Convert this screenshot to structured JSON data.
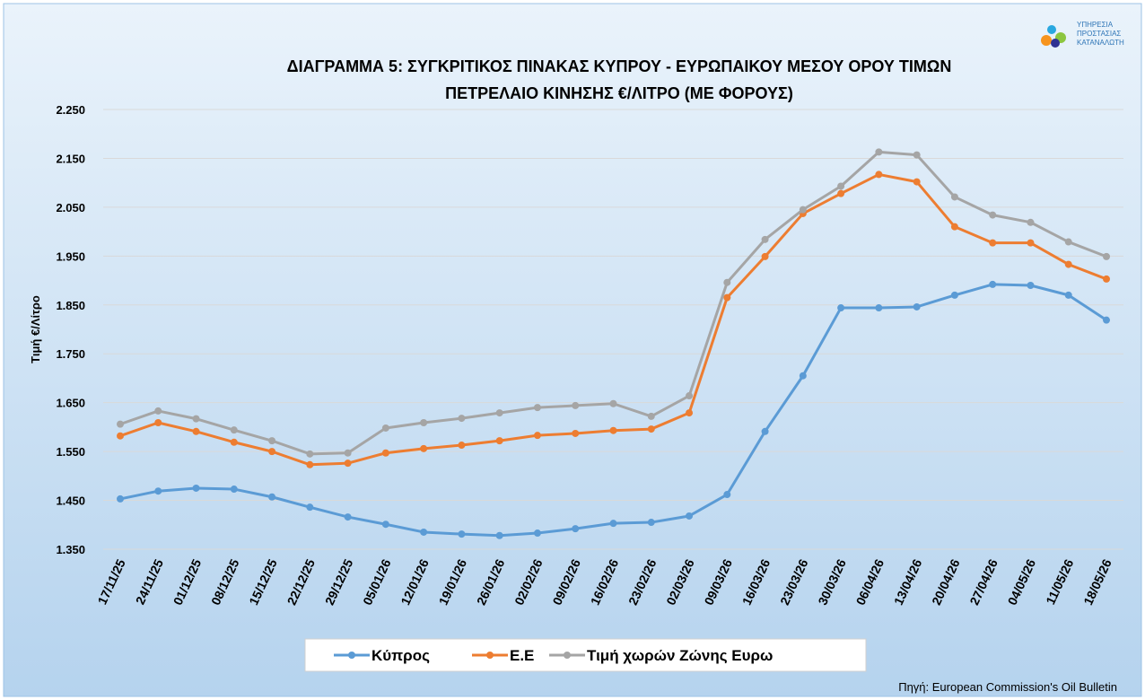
{
  "chart_data": {
    "type": "line",
    "title": [
      "ΔΙΑΓΡΑΜΜΑ 5: ΣΥΓΚΡΙΤΙΚΟΣ ΠΙΝΑΚΑΣ ΚΥΠΡΟΥ - ΕΥΡΩΠΑΙΚΟΥ ΜΕΣΟΥ ΟΡΟΥ ΤΙΜΩΝ",
      "ΠΕΤΡΕΛΑΙΟ ΚΙΝΗΣΗΣ €/ΛΙΤΡΟ (ΜΕ ΦΟΡΟΥΣ)"
    ],
    "y_label": "Τιμή €/Λίτρο",
    "source": "Πηγή: European Commission's Oil Bulletin",
    "logo": [
      "ΥΠΗΡΕΣΙΑ",
      "ΠΡΟΣΤΑΣΙΑΣ",
      "ΚΑΤΑΝΑΛΩΤΗ"
    ],
    "categories": [
      "17/11/25",
      "24/11/25",
      "01/12/25",
      "08/12/25",
      "15/12/25",
      "22/12/25",
      "29/12/25",
      "05/01/26",
      "12/01/26",
      "19/01/26",
      "26/01/26",
      "02/02/26",
      "09/02/26",
      "16/02/26",
      "23/02/26",
      "02/03/26",
      "09/03/26",
      "16/03/26",
      "23/03/26",
      "30/03/26",
      "06/04/26",
      "13/04/26",
      "20/04/26",
      "27/04/26",
      "04/05/26",
      "11/05/26",
      "18/05/26"
    ],
    "series": [
      {
        "name": "Κύπρος",
        "color": "#5b9bd5",
        "values": [
          1.453,
          1.469,
          1.475,
          1.473,
          1.457,
          1.436,
          1.416,
          1.401,
          1.385,
          1.381,
          1.378,
          1.383,
          1.392,
          1.403,
          1.405,
          1.418,
          1.462,
          1.591,
          1.705,
          1.844,
          1.844,
          1.846,
          1.87,
          1.892,
          1.89,
          1.87,
          1.819
        ]
      },
      {
        "name": "Ε.Ε",
        "color": "#ed7d31",
        "values": [
          1.582,
          1.609,
          1.591,
          1.569,
          1.55,
          1.523,
          1.526,
          1.547,
          1.556,
          1.563,
          1.572,
          1.583,
          1.587,
          1.593,
          1.596,
          1.629,
          1.865,
          1.949,
          2.037,
          2.078,
          2.117,
          2.102,
          2.01,
          1.977,
          1.977,
          1.933,
          1.903
        ]
      },
      {
        "name": "Τιμή χωρών Ζώνης Ευρω",
        "color": "#a5a5a5",
        "values": [
          1.606,
          1.633,
          1.617,
          1.594,
          1.572,
          1.545,
          1.547,
          1.598,
          1.609,
          1.618,
          1.629,
          1.64,
          1.644,
          1.648,
          1.622,
          1.664,
          1.896,
          1.984,
          2.045,
          2.093,
          2.163,
          2.157,
          2.071,
          2.034,
          2.019,
          1.979,
          1.949
        ]
      }
    ],
    "ylim": [
      1.35,
      2.25
    ],
    "yticks": [
      {
        "value": 1.35,
        "label": "1.350"
      },
      {
        "value": 1.45,
        "label": "1.450"
      },
      {
        "value": 1.55,
        "label": "1.550"
      },
      {
        "value": 1.65,
        "label": "1.650"
      },
      {
        "value": 1.75,
        "label": "1.750"
      },
      {
        "value": 1.85,
        "label": "1.850"
      },
      {
        "value": 1.95,
        "label": "1.950"
      },
      {
        "value": 2.05,
        "label": "2.050"
      },
      {
        "value": 2.15,
        "label": "2.150"
      },
      {
        "value": 2.25,
        "label": "2.250"
      }
    ],
    "grid": true,
    "legend": "bottom"
  }
}
